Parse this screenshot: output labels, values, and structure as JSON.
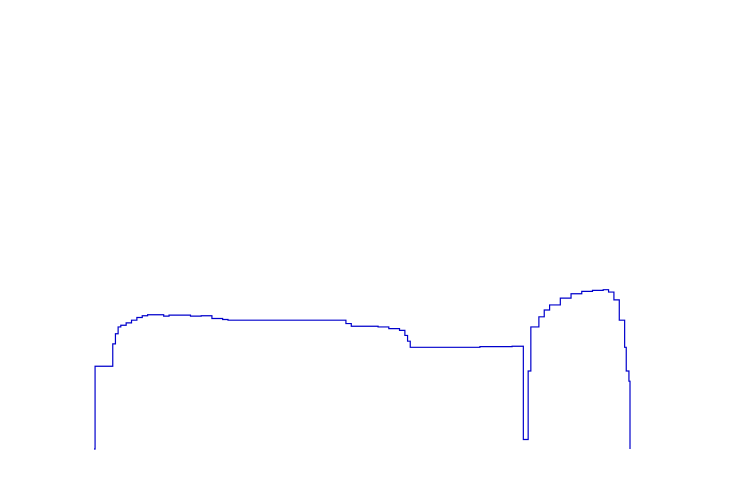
{
  "chart_data": {
    "type": "line",
    "title": "",
    "xlabel": "",
    "ylabel": "",
    "xlim": [
      0,
      1000
    ],
    "ylim": [
      0,
      1000
    ],
    "grid": false,
    "axes_visible": false,
    "series": [
      {
        "color": "#0000cc",
        "step": true,
        "x": [
          0,
          2,
          30,
          35,
          40,
          45,
          50,
          60,
          70,
          80,
          90,
          100,
          130,
          140,
          180,
          200,
          220,
          240,
          250,
          270,
          300,
          400,
          470,
          480,
          510,
          530,
          545,
          550,
          560,
          570,
          580,
          585,
          590,
          620,
          640,
          680,
          700,
          720,
          740,
          760,
          770,
          780,
          785,
          790,
          795,
          800,
          801,
          808,
          810,
          815,
          830,
          840,
          850,
          870,
          890,
          910,
          930,
          950,
          960,
          970,
          980,
          990,
          993,
          998,
          1000
        ],
        "y": [
          0,
          244,
          244,
          310,
          340,
          360,
          365,
          372,
          380,
          388,
          393,
          396,
          392,
          395,
          392,
          393,
          385,
          382,
          380,
          380,
          380,
          380,
          370,
          362,
          362,
          360,
          360,
          355,
          355,
          350,
          335,
          318,
          300,
          300,
          300,
          300,
          300,
          302,
          302,
          302,
          302,
          303,
          303,
          303,
          303,
          303,
          28,
          28,
          230,
          360,
          390,
          410,
          425,
          445,
          458,
          465,
          468,
          470,
          463,
          440,
          380,
          300,
          230,
          200,
          0
        ]
      }
    ]
  }
}
